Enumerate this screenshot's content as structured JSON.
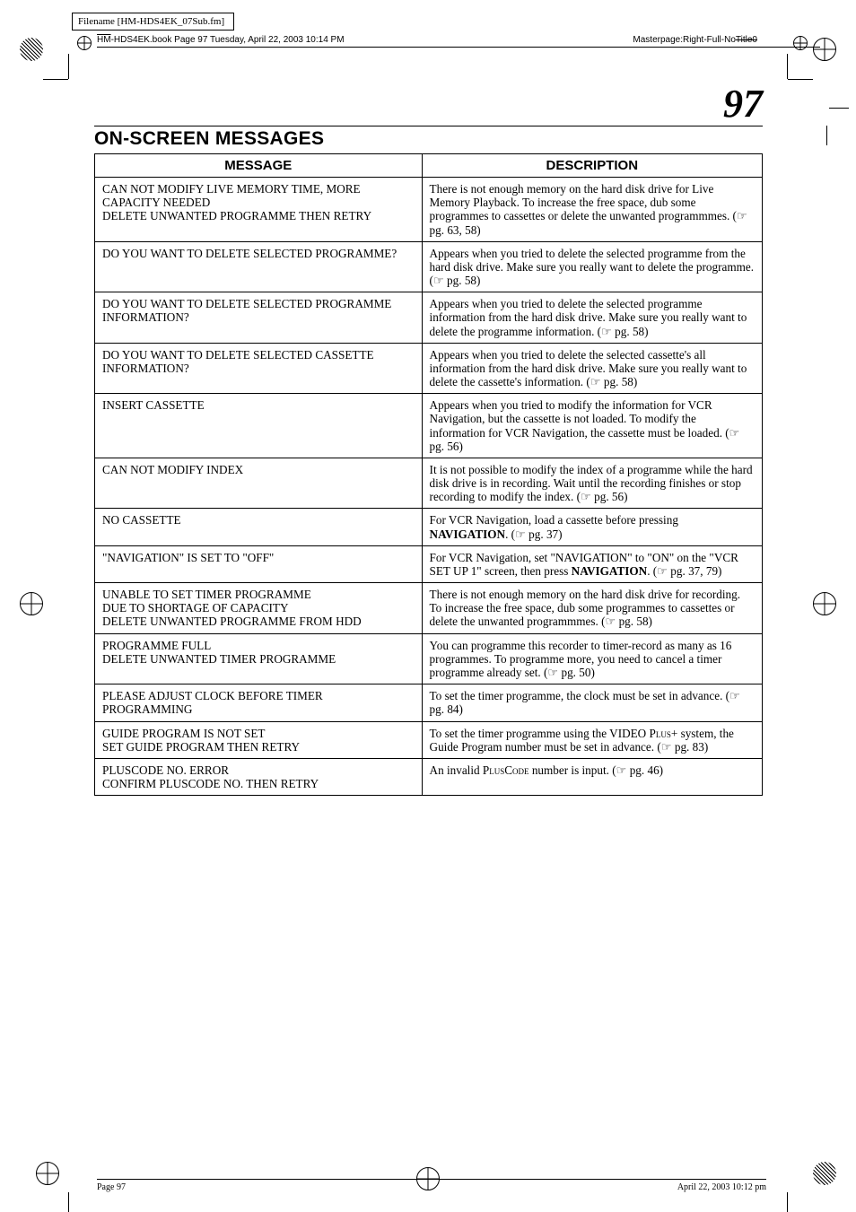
{
  "meta": {
    "filename_label": "Filename [HM-HDS4EK_07Sub.fm]",
    "book_left": "HM-HDS4EK.book  Page 97  Tuesday, April 22, 2003  10:14 PM",
    "masterpage": "Masterpage:Right-Full-NoTitle0",
    "page_number": "97",
    "footer_left": "Page 97",
    "footer_right": "April 22, 2003 10:12 pm"
  },
  "section_title": "ON-SCREEN MESSAGES",
  "headers": {
    "message": "MESSAGE",
    "description": "DESCRIPTION"
  },
  "rows": [
    {
      "message": "CAN NOT MODIFY LIVE MEMORY TIME, MORE CAPACITY NEEDED\nDELETE UNWANTED PROGRAMME THEN RETRY",
      "description": "There is not enough memory on the hard disk drive for Live Memory Playback. To increase the free space, dub some programmes to cassettes or delete the unwanted programmmes. (☞ pg. 63, 58)"
    },
    {
      "message": "DO YOU WANT TO DELETE SELECTED PROGRAMME?",
      "description": "Appears when you tried to delete the selected programme from the hard disk drive. Make sure you really want to delete the programme. (☞ pg. 58)"
    },
    {
      "message": "DO YOU WANT TO DELETE SELECTED PROGRAMME INFORMATION?",
      "description": "Appears when you tried to delete the selected programme information from the hard disk drive. Make sure you really want to delete the programme information. (☞ pg. 58)"
    },
    {
      "message": "DO YOU WANT TO DELETE SELECTED CASSETTE INFORMATION?",
      "description": "Appears when you tried to delete the selected cassette's all information from the hard disk drive. Make sure you really want to delete the cassette's information. (☞ pg. 58)"
    },
    {
      "message": "INSERT CASSETTE",
      "description": "Appears when you tried to modify the information for VCR Navigation, but the cassette is not loaded. To modify the information for VCR Navigation, the cassette must be loaded. (☞ pg. 56)"
    },
    {
      "message": "CAN NOT MODIFY INDEX",
      "description": "It is not possible to modify the index of a programme while the hard disk drive is in recording. Wait until the recording finishes or stop recording to modify the index. (☞ pg. 56)"
    },
    {
      "message": "NO CASSETTE",
      "description": "For VCR Navigation, load a cassette before pressing <b>NAVIGATION</b>. (☞ pg. 37)"
    },
    {
      "message": "\"NAVIGATION\" IS SET TO \"OFF\"",
      "description": "For VCR Navigation, set \"NAVIGATION\" to \"ON\" on the \"VCR SET UP 1\" screen, then press <b>NAVIGATION</b>. (☞ pg. 37, 79)"
    },
    {
      "message": "UNABLE TO SET TIMER PROGRAMME\nDUE TO SHORTAGE OF CAPACITY\nDELETE UNWANTED PROGRAMME FROM HDD",
      "description": "There is not enough memory on the hard disk drive for recording. To increase the free space, dub some programmes to cassettes or delete the unwanted programmmes. (☞ pg. 58)"
    },
    {
      "message": "PROGRAMME FULL\nDELETE UNWANTED TIMER PROGRAMME",
      "description": "You can programme this recorder to timer-record as many as 16 programmes. To programme more, you need to cancel a timer programme already set. (☞ pg. 50)"
    },
    {
      "message": "PLEASE ADJUST CLOCK BEFORE TIMER PROGRAMMING",
      "description": "To set the timer programme, the clock must be set in advance. (☞ pg. 84)"
    },
    {
      "message": "GUIDE PROGRAM IS NOT SET\nSET GUIDE PROGRAM THEN RETRY",
      "description": "To set the timer programme using the VIDEO P<span class=\"sc\">lus</span>+ system, the Guide Program number must be set in advance. (☞ pg. 83)"
    },
    {
      "message": "PLUSCODE NO. ERROR\nCONFIRM PLUSCODE NO. THEN RETRY",
      "description": "An invalid P<span class=\"sc\">lus</span>C<span class=\"sc\">ode</span> number is input. (☞ pg. 46)"
    }
  ]
}
